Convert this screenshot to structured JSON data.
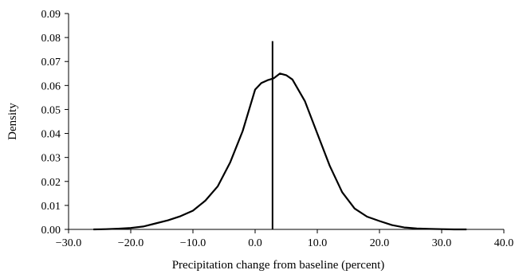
{
  "chart_data": {
    "type": "line",
    "title": "",
    "xlabel": "Precipitation change from baseline (percent)",
    "ylabel": "Density",
    "xlim": [
      -30,
      40
    ],
    "ylim": [
      0,
      0.09
    ],
    "x_ticks": [
      -30,
      -20,
      -10,
      0,
      10,
      20,
      30,
      40
    ],
    "x_tick_labels": [
      "−30.0",
      "−20.0",
      "−10.0",
      "0.0",
      "10.0",
      "20.0",
      "30.0",
      "40.0"
    ],
    "y_ticks": [
      0,
      0.01,
      0.02,
      0.03,
      0.04,
      0.05,
      0.06,
      0.07,
      0.08,
      0.09
    ],
    "y_tick_labels": [
      "0.00",
      "0.01",
      "0.02",
      "0.03",
      "0.04",
      "0.05",
      "0.06",
      "0.07",
      "0.08",
      "0.09"
    ],
    "grid": false,
    "legend": "none",
    "series": [
      {
        "x": [
          -26,
          -24,
          -22,
          -20,
          -18,
          -16,
          -14,
          -12,
          -10,
          -8,
          -6,
          -4,
          -2,
          0,
          1,
          2,
          3,
          4,
          5,
          6,
          8,
          10,
          12,
          14,
          16,
          18,
          20,
          22,
          24,
          26,
          28,
          30,
          32,
          34
        ],
        "y": [
          0.0,
          0.0001,
          0.0003,
          0.0006,
          0.0012,
          0.0025,
          0.0038,
          0.0055,
          0.0078,
          0.012,
          0.018,
          0.028,
          0.041,
          0.0583,
          0.061,
          0.0622,
          0.063,
          0.065,
          0.0643,
          0.0625,
          0.0535,
          0.04,
          0.0265,
          0.0155,
          0.0087,
          0.0053,
          0.0035,
          0.0018,
          0.0008,
          0.0004,
          0.0002,
          0.0001,
          0.0,
          0.0
        ],
        "color": "#000000"
      }
    ],
    "vertical_line": {
      "x": 2.8,
      "y_top": 0.0785,
      "color": "#000000"
    }
  }
}
